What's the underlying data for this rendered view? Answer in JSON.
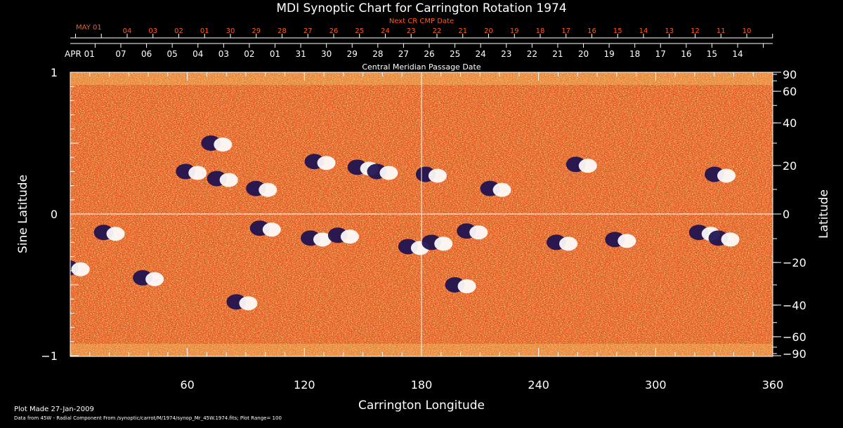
{
  "chart_data": {
    "type": "heatmap",
    "title": "MDI Synoptic Chart for Carrington Rotation 1974",
    "xlabel": "Carrington Longitude",
    "ylabel_left": "Sine Latitude",
    "ylabel_right": "Latitude",
    "xlim": [
      0,
      360
    ],
    "ylim": [
      -1,
      1
    ],
    "x_ticks": [
      "60",
      "120",
      "180",
      "240",
      "300",
      "360"
    ],
    "x_tick_values": [
      60,
      120,
      180,
      240,
      300,
      360
    ],
    "y_left_ticks": [
      {
        "label": "1",
        "value": 1
      },
      {
        "label": "0",
        "value": 0
      },
      {
        "label": "−1",
        "value": -1
      }
    ],
    "y_right_ticks": [
      {
        "label": "90",
        "lat": 90
      },
      {
        "label": "60",
        "lat": 60
      },
      {
        "label": "40",
        "lat": 40
      },
      {
        "label": "20",
        "lat": 20
      },
      {
        "label": "0",
        "lat": 0
      },
      {
        "label": "−20",
        "lat": -20
      },
      {
        "label": "−40",
        "lat": -40
      },
      {
        "label": "−60",
        "lat": -60
      },
      {
        "label": "−90",
        "lat": -90
      }
    ],
    "cmp_axis": {
      "title": "Central Meridian Passage Date",
      "start_label": "APR 01",
      "dates": [
        "07",
        "06",
        "05",
        "04",
        "03",
        "02",
        "01",
        "31",
        "30",
        "29",
        "28",
        "27",
        "26",
        "25",
        "24",
        "23",
        "22",
        "21",
        "20",
        "19",
        "18",
        "17",
        "16",
        "15",
        "14"
      ]
    },
    "next_cr_axis": {
      "title": "Next CR CMP Date",
      "start_label": "MAY 01",
      "dates": [
        "04",
        "03",
        "02",
        "01",
        "30",
        "29",
        "28",
        "27",
        "26",
        "25",
        "24",
        "23",
        "22",
        "21",
        "20",
        "19",
        "18",
        "17",
        "16",
        "15",
        "14",
        "13",
        "12",
        "11",
        "10"
      ]
    },
    "colors": {
      "background": "#000000",
      "field_base": "#e8521a",
      "positive_polarity": "#ffffff",
      "negative_polarity": "#1a1050",
      "cmp_axis_text": "#ffffff",
      "next_cr_text": "#ff5a1a",
      "grid": "#ffffff"
    },
    "active_regions": [
      {
        "lon": 62,
        "sinlat": 0.3
      },
      {
        "lon": 75,
        "sinlat": 0.5
      },
      {
        "lon": 78,
        "sinlat": 0.25
      },
      {
        "lon": 98,
        "sinlat": 0.18
      },
      {
        "lon": 128,
        "sinlat": 0.37
      },
      {
        "lon": 150,
        "sinlat": 0.33
      },
      {
        "lon": 160,
        "sinlat": 0.3
      },
      {
        "lon": 185,
        "sinlat": 0.28
      },
      {
        "lon": 218,
        "sinlat": 0.18
      },
      {
        "lon": 262,
        "sinlat": 0.35
      },
      {
        "lon": 333,
        "sinlat": 0.28
      },
      {
        "lon": 20,
        "sinlat": -0.13
      },
      {
        "lon": 100,
        "sinlat": -0.1
      },
      {
        "lon": 126,
        "sinlat": -0.17
      },
      {
        "lon": 140,
        "sinlat": -0.15
      },
      {
        "lon": 176,
        "sinlat": -0.23
      },
      {
        "lon": 188,
        "sinlat": -0.2
      },
      {
        "lon": 206,
        "sinlat": -0.12
      },
      {
        "lon": 252,
        "sinlat": -0.2
      },
      {
        "lon": 282,
        "sinlat": -0.18
      },
      {
        "lon": 325,
        "sinlat": -0.13
      },
      {
        "lon": 335,
        "sinlat": -0.17
      },
      {
        "lon": 2,
        "sinlat": -0.38
      },
      {
        "lon": 40,
        "sinlat": -0.45
      },
      {
        "lon": 88,
        "sinlat": -0.62
      },
      {
        "lon": 200,
        "sinlat": -0.5
      }
    ]
  },
  "footer": {
    "plot_made": "Plot Made 27-Jan-2009",
    "source": "Data from 45W - Radial Component From /synoptic/carrot/M/1974/synop_Mr_45W.1974.fits; Plot Range= 100"
  }
}
